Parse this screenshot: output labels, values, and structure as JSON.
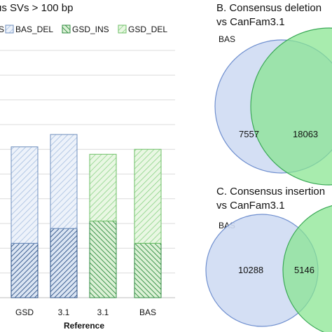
{
  "chart_data": [
    {
      "type": "bar",
      "title": "us SVs > 100 bp",
      "xlabel": "Reference",
      "ylabel": "",
      "categories": [
        "GSD",
        "3.1",
        "3.1",
        "BAS"
      ],
      "ylim": [
        0,
        100
      ],
      "grid": true,
      "legend_placement": "top",
      "series": [
        {
          "name": "BAS_DEL",
          "color": "#9ab6dc",
          "pattern": "hatch",
          "fill": "#edf2fa",
          "values": [
            39,
            38,
            0,
            0
          ]
        },
        {
          "name": "GSD_INS",
          "color": "#2c8a3e",
          "pattern": "dense-hatch",
          "fill": "#dff3d7",
          "values": [
            0,
            0,
            31,
            0
          ]
        },
        {
          "name": "GSD_DEL",
          "color": "#7fcf7a",
          "pattern": "hatch",
          "fill": "#e9f7e3",
          "values": [
            0,
            0,
            27,
            38
          ]
        },
        {
          "name": "",
          "color": "#2a4f86",
          "pattern": "dense-hatch",
          "fill": "#dbe5f3",
          "values": [
            22,
            28,
            0,
            0
          ]
        },
        {
          "name": "",
          "color": "#2c8a3e",
          "pattern": "dense-hatch",
          "fill": "#dcf1d6",
          "values": [
            0,
            0,
            0,
            22
          ]
        }
      ],
      "legend_prefix": "S"
    },
    {
      "type": "venn",
      "title_line1": "B. Consensus deletion",
      "title_line2": "vs CanFam3.1",
      "set_labels": [
        "BAS"
      ],
      "values": {
        "left_only": 7557,
        "overlap": 18063
      },
      "colors": {
        "left": "#cfdcf3",
        "right": "#86e58f"
      }
    },
    {
      "type": "venn",
      "title_line1": "C. Consensus insertion",
      "title_line2": "vs CanFam3.1",
      "set_labels": [
        "BAS"
      ],
      "values": {
        "left_only": 10288,
        "overlap": 5146
      },
      "colors": {
        "left": "#cfdcf3",
        "right": "#86e58f"
      }
    }
  ]
}
